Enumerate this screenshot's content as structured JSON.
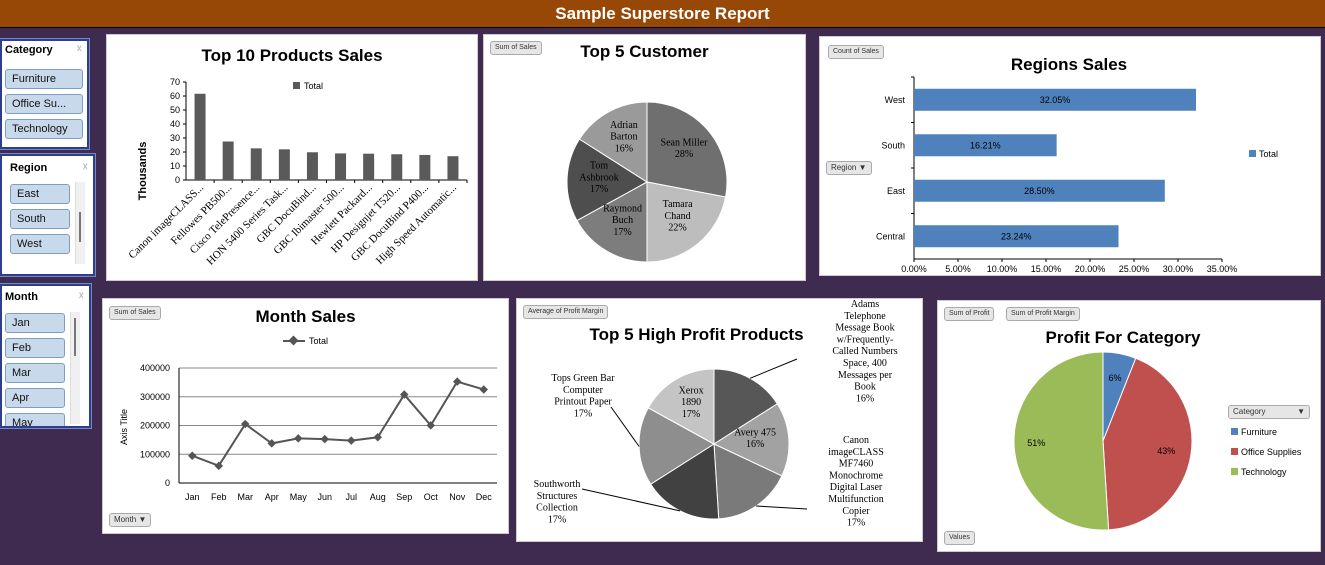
{
  "banner": {
    "title": "Sample Superstore Report"
  },
  "slicers": {
    "category": {
      "title": "Category",
      "items": [
        "Furniture",
        "Office Su...",
        "Technology"
      ]
    },
    "region": {
      "title": "Region",
      "items": [
        "East",
        "South",
        "West"
      ]
    },
    "month": {
      "title": "Month",
      "items": [
        "Jan",
        "Feb",
        "Mar",
        "Apr",
        "May"
      ]
    }
  },
  "field_buttons": {
    "customer": "Sum of Sales",
    "regions": "Count of Sales",
    "region_filter": "Region",
    "month_sales": "Sum of Sales",
    "month_filter": "Month",
    "high_profit": "Average of Profit Margin",
    "profit_a": "Sum of Profit",
    "profit_b": "Sum of Profit Margin",
    "category_filter": "Category",
    "values": "Values"
  },
  "colors": {
    "banner": "#974706",
    "background": "#3e2b4f",
    "bar_gray": "#5a5a5a",
    "bar_blue": "#4f81bd",
    "furniture": "#4f81bd",
    "office": "#c0504d",
    "technology": "#9bbb59"
  },
  "chart_data": [
    {
      "id": "top10",
      "type": "bar",
      "title": "Top 10 Products Sales",
      "ylabel": "Thousands",
      "ylim": [
        0,
        70
      ],
      "yticks": [
        "0",
        "10",
        "20",
        "30",
        "40",
        "50",
        "60",
        "70"
      ],
      "legend": "Total",
      "categories": [
        "Canon imageCLASS...",
        "Fellowes PB500...",
        "Cisco TelePresence...",
        "HON 5400 Series Task...",
        "GBC DocuBind...",
        "GBC Ibimaster 500...",
        "Hewlett Packard...",
        "HP Designjet T520...",
        "GBC DocuBind P400...",
        "High Speed Automatic..."
      ],
      "values": [
        61.6,
        27.5,
        22.6,
        21.9,
        19.8,
        19.0,
        18.8,
        18.4,
        17.9,
        17.0
      ]
    },
    {
      "id": "customers",
      "type": "pie",
      "title": "Top 5 Customer",
      "slices": [
        {
          "name": "Sean Miller",
          "value": 28,
          "label": "28%",
          "color": "#6f6f6f"
        },
        {
          "name": "Tamara Chand",
          "value": 22,
          "label": "22%",
          "color": "#bdbdbd"
        },
        {
          "name": "Raymond Buch",
          "value": 17,
          "label": "17%",
          "color": "#7d7d7d"
        },
        {
          "name": "Tom Ashbrook",
          "value": 17,
          "label": "17%",
          "color": "#4e4e4e"
        },
        {
          "name": "Adrian Barton",
          "value": 16,
          "label": "16%",
          "color": "#9a9a9a"
        }
      ],
      "label_lines": [
        [
          "Sean Miller",
          "28%"
        ],
        [
          "Tamara",
          "Chand",
          "22%"
        ],
        [
          "Raymond",
          "Buch",
          "17%"
        ],
        [
          "Tom",
          "Ashbrook",
          "17%"
        ],
        [
          "Adrian",
          "Barton",
          "16%"
        ]
      ]
    },
    {
      "id": "regions",
      "type": "bar",
      "orientation": "horizontal",
      "title": "Regions Sales",
      "legend": "Total",
      "categories": [
        "West",
        "South",
        "East",
        "Central"
      ],
      "values": [
        32.05,
        16.21,
        28.5,
        23.24
      ],
      "labels": [
        "32.05%",
        "16.21%",
        "28.50%",
        "23.24%"
      ],
      "xlim": [
        0,
        35
      ],
      "xticks": [
        "0.00%",
        "5.00%",
        "10.00%",
        "15.00%",
        "20.00%",
        "25.00%",
        "30.00%",
        "35.00%"
      ]
    },
    {
      "id": "months",
      "type": "line",
      "title": "Month Sales",
      "ylabel": "Axis Title",
      "legend": "Total",
      "ylim": [
        0,
        400000
      ],
      "yticks": [
        "0",
        "100000",
        "200000",
        "300000",
        "400000"
      ],
      "categories": [
        "Jan",
        "Feb",
        "Mar",
        "Apr",
        "May",
        "Jun",
        "Jul",
        "Aug",
        "Sep",
        "Oct",
        "Nov",
        "Dec"
      ],
      "values": [
        94925,
        59751,
        205005,
        137762,
        155029,
        152718,
        147238,
        159044,
        307650,
        200322,
        352461,
        325293
      ]
    },
    {
      "id": "high_profit",
      "type": "pie",
      "title": "Top 5 High Profit Products",
      "slices": [
        {
          "name": "Adams Telephone Message Book w/Frequently-Called Numbers Space, 400 Messages per Book",
          "value": 16,
          "label": "16%",
          "color": "#575757"
        },
        {
          "name": "Avery 475",
          "value": 16,
          "label": "16%",
          "color": "#a2a2a2"
        },
        {
          "name": "Canon imageCLASS MF7460 Monochrome Digital Laser Multifunction Copier",
          "value": 17,
          "label": "17%",
          "color": "#7a7a7a"
        },
        {
          "name": "Southworth Structures Collection",
          "value": 17,
          "label": "17%",
          "color": "#414141"
        },
        {
          "name": "Tops Green Bar Computer Printout Paper",
          "value": 17,
          "label": "17%",
          "color": "#8e8e8e"
        },
        {
          "name": "Xerox 1890",
          "value": 17,
          "label": "17%",
          "color": "#c4c4c4"
        }
      ],
      "label_lines": [
        [
          "Adams",
          "Telephone",
          "Message Book",
          "w/Frequently-",
          "Called Numbers",
          "Space, 400",
          "Messages per",
          "Book",
          "16%"
        ],
        [
          "Avery 475",
          "16%"
        ],
        [
          "Canon",
          "imageCLASS",
          "MF7460",
          "Monochrome",
          "Digital Laser",
          "Multifunction",
          "Copier",
          "17%"
        ],
        [
          "Southworth",
          "Structures",
          "Collection",
          "17%"
        ],
        [
          "Tops Green Bar",
          "Computer",
          "Printout Paper",
          "17%"
        ],
        [
          "Xerox",
          "1890",
          "17%"
        ]
      ]
    },
    {
      "id": "profit_category",
      "type": "pie",
      "title": "Profit For Category",
      "legend_title": "Category",
      "slices": [
        {
          "name": "Furniture",
          "value": 6,
          "label": "6%",
          "color": "#4f81bd"
        },
        {
          "name": "Office Supplies",
          "value": 43,
          "label": "43%",
          "color": "#c0504d"
        },
        {
          "name": "Technology",
          "value": 51,
          "label": "51%",
          "color": "#9bbb59"
        }
      ]
    }
  ]
}
